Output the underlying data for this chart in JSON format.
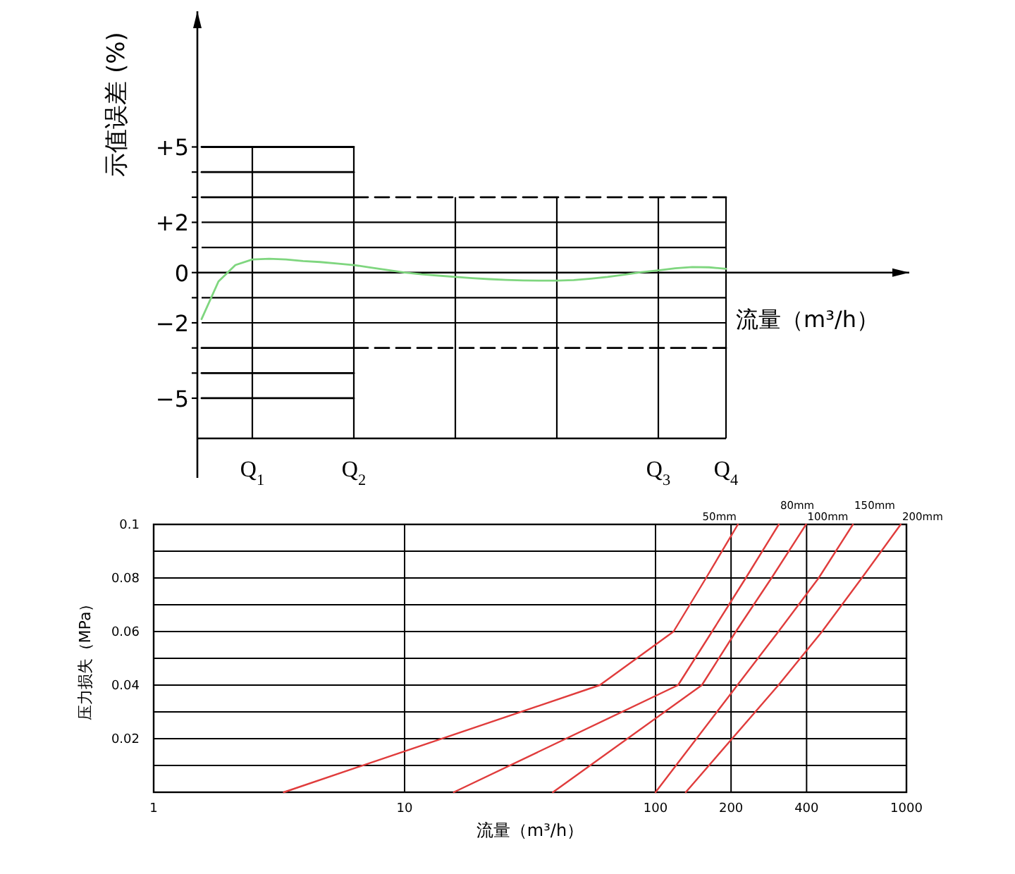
{
  "chart_data": [
    {
      "type": "line",
      "ylabel": "示值误差 (%)",
      "xlabel": "流量（m³/h）",
      "ylim": [
        -6.6,
        10.4
      ],
      "categories": [
        null,
        null,
        null,
        "Q$_{1}$",
        null,
        null,
        null,
        null,
        null,
        "Q$_{2}$",
        null,
        null,
        null,
        null,
        null,
        null,
        null,
        null,
        null,
        null,
        null,
        null,
        null,
        null,
        null,
        null,
        null,
        "Q$_{3}$",
        null,
        null,
        null,
        "Q$_{4}$"
      ],
      "yticks": [
        {
          "value": 5,
          "label": "+5"
        },
        {
          "value": 4,
          "label": null
        },
        {
          "value": 3,
          "label": null
        },
        {
          "value": 2,
          "label": "+2"
        },
        {
          "value": 1,
          "label": null
        },
        {
          "value": 0,
          "label": "0"
        },
        {
          "value": -1,
          "label": null
        },
        {
          "value": -2,
          "label": "−2"
        },
        {
          "value": -3,
          "label": null
        },
        {
          "value": -4,
          "label": null
        },
        {
          "value": -5,
          "label": "−5"
        }
      ],
      "grid": true,
      "series": [
        {
          "color": "#000000",
          "values": [
            5,
            5,
            5,
            5,
            5,
            5,
            5,
            5,
            5,
            5,
            null,
            null,
            null,
            null,
            null,
            null,
            null,
            null,
            null,
            null,
            null,
            null,
            null,
            null,
            null,
            null,
            null,
            null,
            null,
            null,
            null,
            null
          ]
        },
        {
          "color": "#000000",
          "values": [
            -5,
            -5,
            -5,
            -5,
            -5,
            -5,
            -5,
            -5,
            -5,
            -5,
            null,
            null,
            null,
            null,
            null,
            null,
            null,
            null,
            null,
            null,
            null,
            null,
            null,
            null,
            null,
            null,
            null,
            null,
            null,
            null,
            null,
            null
          ]
        },
        {
          "color": "#000000",
          "values": [
            4,
            4,
            4,
            4,
            4,
            4,
            4,
            4,
            4,
            4,
            null,
            null,
            null,
            null,
            null,
            null,
            null,
            null,
            null,
            null,
            null,
            null,
            null,
            null,
            null,
            null,
            null,
            null,
            null,
            null,
            null,
            null
          ]
        },
        {
          "color": "#000000",
          "values": [
            -4,
            -4,
            -4,
            -4,
            -4,
            -4,
            -4,
            -4,
            -4,
            -4,
            null,
            null,
            null,
            null,
            null,
            null,
            null,
            null,
            null,
            null,
            null,
            null,
            null,
            null,
            null,
            null,
            null,
            null,
            null,
            null,
            null,
            null
          ]
        },
        {
          "color": "#000000",
          "values": [
            3,
            3,
            3,
            3,
            3,
            3,
            3,
            3,
            3,
            3,
            null,
            null,
            null,
            null,
            null,
            null,
            null,
            null,
            null,
            null,
            null,
            null,
            null,
            null,
            null,
            null,
            null,
            null,
            null,
            null,
            null,
            null
          ]
        },
        {
          "color": "#000000",
          "values": [
            -3,
            -3,
            -3,
            -3,
            -3,
            -3,
            -3,
            -3,
            -3,
            -3,
            null,
            null,
            null,
            null,
            null,
            null,
            null,
            null,
            null,
            null,
            null,
            null,
            null,
            null,
            null,
            null,
            null,
            null,
            null,
            null,
            null,
            null
          ]
        },
        {
          "color": "#000000",
          "line_style": "dashed",
          "values": [
            null,
            null,
            null,
            null,
            null,
            null,
            null,
            null,
            null,
            3,
            3,
            3,
            3,
            3,
            3,
            3,
            3,
            3,
            3,
            3,
            3,
            3,
            3,
            3,
            3,
            3,
            3,
            3,
            3,
            3,
            3,
            3
          ]
        },
        {
          "color": "#000000",
          "line_style": "dashed",
          "values": [
            null,
            null,
            null,
            null,
            null,
            null,
            null,
            null,
            null,
            -3,
            -3,
            -3,
            -3,
            -3,
            -3,
            -3,
            -3,
            -3,
            -3,
            -3,
            -3,
            -3,
            -3,
            -3,
            -3,
            -3,
            -3,
            -3,
            -3,
            -3,
            -3,
            -3
          ]
        },
        {
          "color": "#7fd67f",
          "values": [
            -1.85,
            -0.35,
            0.3,
            0.52,
            0.55,
            0.52,
            0.46,
            0.42,
            0.36,
            0.3,
            0.2,
            0.1,
            0.0,
            -0.07,
            -0.12,
            -0.17,
            -0.22,
            -0.26,
            -0.29,
            -0.31,
            -0.32,
            -0.32,
            -0.3,
            -0.24,
            -0.17,
            -0.08,
            0.02,
            0.09,
            0.17,
            0.22,
            0.21,
            0.15
          ]
        }
      ]
    },
    {
      "type": "line",
      "ylabel": "压力损失（MPa）",
      "xlabel": "流量（m³/h）",
      "log": "x",
      "xlim": [
        1,
        1000
      ],
      "ylim": [
        0,
        0.1
      ],
      "xticks": [
        1,
        10,
        100,
        200,
        400,
        1000
      ],
      "yticks": [
        {
          "value": 0.01,
          "label": null
        },
        0.02,
        {
          "value": 0.03,
          "label": null
        },
        0.04,
        {
          "value": 0.05,
          "label": null
        },
        0.06,
        {
          "value": 0.07,
          "label": null
        },
        0.08,
        {
          "value": 0.09,
          "label": null
        },
        0.1
      ],
      "grid": true,
      "series": [
        {
          "name": "50mm",
          "color": "#e03c3c",
          "x": [
            3.3,
            60,
            118,
            159,
            213
          ],
          "values": [
            0,
            0.04,
            0.06,
            0.08,
            0.1
          ]
        },
        {
          "name": "80mm",
          "color": "#e03c3c",
          "x": [
            15.7,
            123,
            168,
            229,
            310
          ],
          "values": [
            0,
            0.04,
            0.06,
            0.08,
            0.1
          ]
        },
        {
          "name": "100mm",
          "color": "#e03c3c",
          "x": [
            39,
            153,
            209,
            290,
            398
          ],
          "values": [
            0,
            0.04,
            0.06,
            0.08,
            0.1
          ]
        },
        {
          "name": "150mm",
          "color": "#e03c3c",
          "x": [
            100,
            212,
            309,
            447,
            612
          ],
          "values": [
            0,
            0.04,
            0.06,
            0.08,
            0.1
          ]
        },
        {
          "name": "200mm",
          "color": "#e03c3c",
          "x": [
            132,
            309,
            461,
            664,
            949
          ],
          "values": [
            0,
            0.04,
            0.06,
            0.08,
            0.1
          ]
        }
      ]
    }
  ]
}
